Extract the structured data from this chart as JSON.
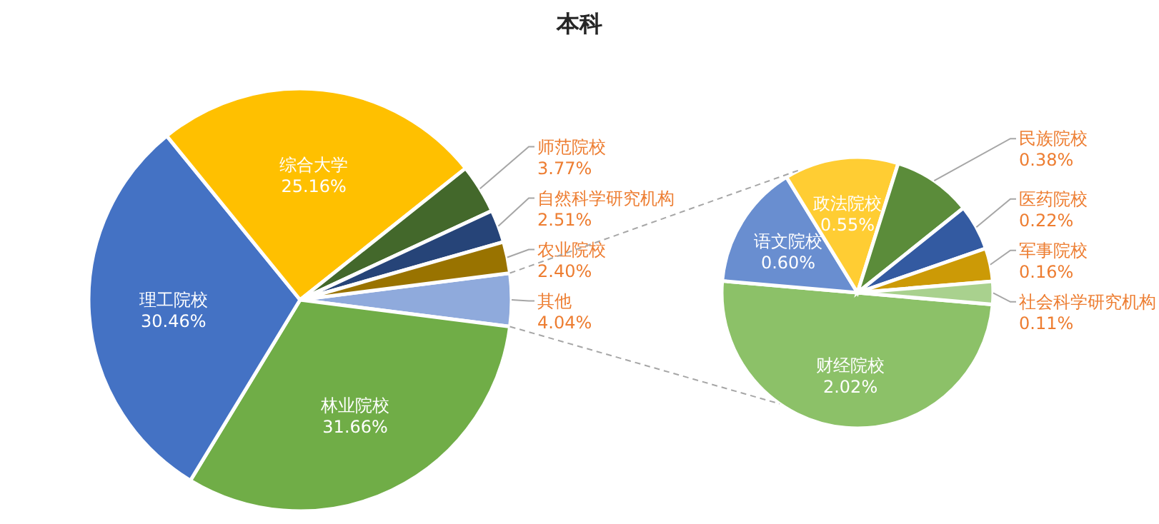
{
  "chart_data": [
    {
      "type": "pie",
      "title": "本科",
      "categories": [
        "其他",
        "林业院校",
        "理工院校",
        "综合大学",
        "师范院校",
        "自然科学研究机构",
        "农业院校"
      ],
      "values": [
        4.04,
        31.66,
        30.46,
        25.16,
        3.77,
        2.51,
        2.4
      ],
      "value_labels": [
        "4.04%",
        "31.66%",
        "30.46%",
        "25.16%",
        "3.77%",
        "2.51%",
        "2.40%"
      ],
      "colors": [
        "#8faadc",
        "#70ad47",
        "#4472c4",
        "#ffc000",
        "#43682b",
        "#264478",
        "#997300"
      ]
    },
    {
      "type": "pie",
      "categories": [
        "财经院校",
        "语文院校",
        "政法院校",
        "民族院校",
        "医药院校",
        "军事院校",
        "社会科学研究机构"
      ],
      "values": [
        2.02,
        0.6,
        0.55,
        0.38,
        0.22,
        0.16,
        0.11
      ],
      "value_labels": [
        "2.02%",
        "0.60%",
        "0.55%",
        "0.38%",
        "0.22%",
        "0.16%",
        "0.11%"
      ],
      "colors": [
        "#8cc168",
        "#698ed0",
        "#ffcd33",
        "#5b8c3a",
        "#335aa1",
        "#cc9a06",
        "#a9d18e"
      ]
    }
  ]
}
